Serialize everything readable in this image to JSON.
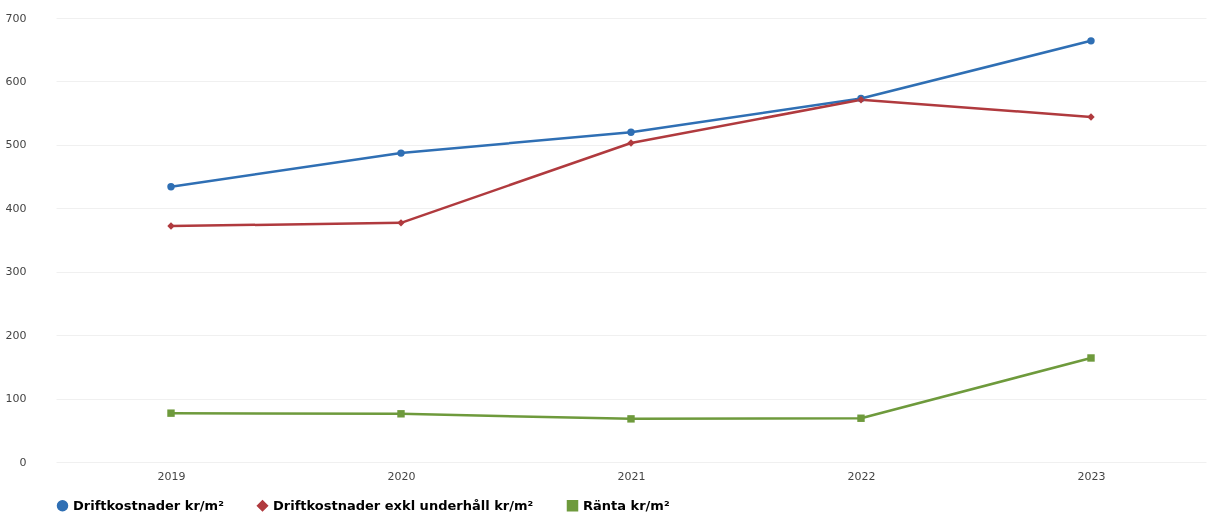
{
  "chart_data": {
    "type": "line",
    "categories": [
      "2019",
      "2020",
      "2021",
      "2022",
      "2023"
    ],
    "series": [
      {
        "name": "Driftkostnader kr/m²",
        "color": "#2f6fb4",
        "marker": "circle",
        "values": [
          434,
          487,
          520,
          573,
          664
        ]
      },
      {
        "name": "Driftkostnader exkl underhåll kr/m²",
        "color": "#b03a3e",
        "marker": "diamond",
        "values": [
          372,
          377,
          503,
          571,
          544
        ]
      },
      {
        "name": "Ränta kr/m²",
        "color": "#6e9a3c",
        "marker": "square",
        "values": [
          77,
          76,
          68,
          69,
          164
        ]
      }
    ],
    "ylim": [
      0,
      700
    ],
    "yticks": [
      0,
      100,
      200,
      300,
      400,
      500,
      600,
      700
    ],
    "grid": "y",
    "legend": "bottom"
  }
}
